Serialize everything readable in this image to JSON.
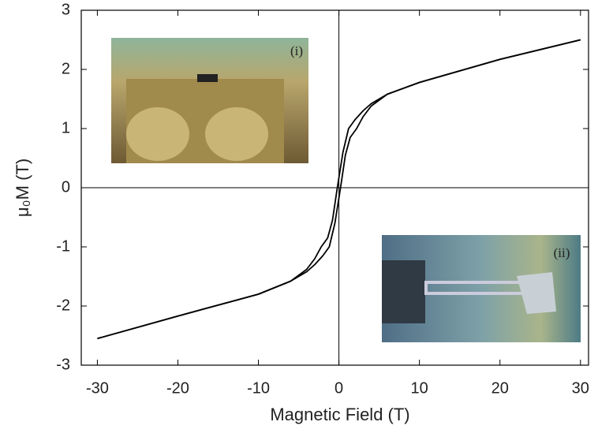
{
  "chart_data": {
    "type": "line",
    "x_label": "Magnetic Field (T)",
    "y_label": "μ₀M (T)",
    "xlim": [
      -32,
      31
    ],
    "ylim": [
      -3,
      3
    ],
    "xticks": [
      -30,
      -20,
      -10,
      0,
      10,
      20,
      30
    ],
    "yticks": [
      -3,
      -2,
      -1,
      0,
      1,
      2,
      3
    ],
    "zero_lines": true,
    "annotations": [
      "(i)",
      "(ii)"
    ],
    "series": [
      {
        "color": "#000000",
        "x": [
          30,
          20,
          10,
          6,
          4,
          3,
          2,
          1.2,
          0.5,
          -0.2,
          -0.8,
          -1.4,
          -2.2,
          -3,
          -4,
          -6,
          -10,
          -20,
          -30
        ],
        "values": [
          2.5,
          2.17,
          1.78,
          1.58,
          1.42,
          1.3,
          1.15,
          1.0,
          0.6,
          0,
          -0.55,
          -0.85,
          -1.0,
          -1.2,
          -1.38,
          -1.58,
          -1.8,
          -2.17,
          -2.55
        ]
      },
      {
        "color": "#000000",
        "x": [
          -30,
          -20,
          -10,
          -6,
          -4,
          -3,
          -2,
          -1.2,
          -0.5,
          0.2,
          0.8,
          1.4,
          2.2,
          3,
          4,
          6,
          10,
          20,
          30
        ],
        "values": [
          -2.55,
          -2.17,
          -1.8,
          -1.58,
          -1.42,
          -1.3,
          -1.15,
          -1.0,
          -0.6,
          0,
          0.55,
          0.85,
          1.0,
          1.2,
          1.38,
          1.58,
          1.78,
          2.17,
          2.5
        ]
      }
    ]
  }
}
